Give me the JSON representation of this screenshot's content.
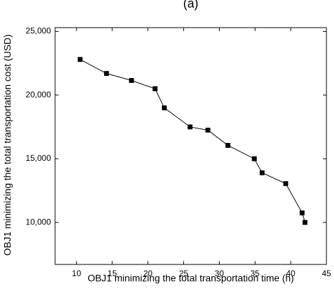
{
  "chart_data": {
    "type": "line",
    "title": "(a)",
    "x_label": "OBJ1 minimizing the total transportation time (h)",
    "y_label": "OBJ1 minimizing the total transportation cost (USD)",
    "x": [
      10.5,
      14.2,
      17.7,
      21.0,
      22.3,
      25.9,
      28.4,
      31.2,
      34.9,
      36.0,
      39.3,
      41.6,
      42.0
    ],
    "series": [
      {
        "name": "OBJ1",
        "color": "#000000",
        "values": [
          22800,
          21700,
          21150,
          20500,
          19000,
          17500,
          17250,
          16050,
          15000,
          13900,
          13050,
          10750,
          10000
        ]
      }
    ],
    "xlim": [
      7,
      45
    ],
    "xticks": [
      10,
      15,
      20,
      25,
      30,
      35,
      40,
      45
    ],
    "ylim": [
      6700,
      25300
    ],
    "yticks": [
      {
        "value": 10000,
        "label": "10,000"
      },
      {
        "value": 15000,
        "label": "15,000"
      },
      {
        "value": 20000,
        "label": "20,000"
      },
      {
        "value": 25000,
        "label": "25,000"
      }
    ]
  }
}
